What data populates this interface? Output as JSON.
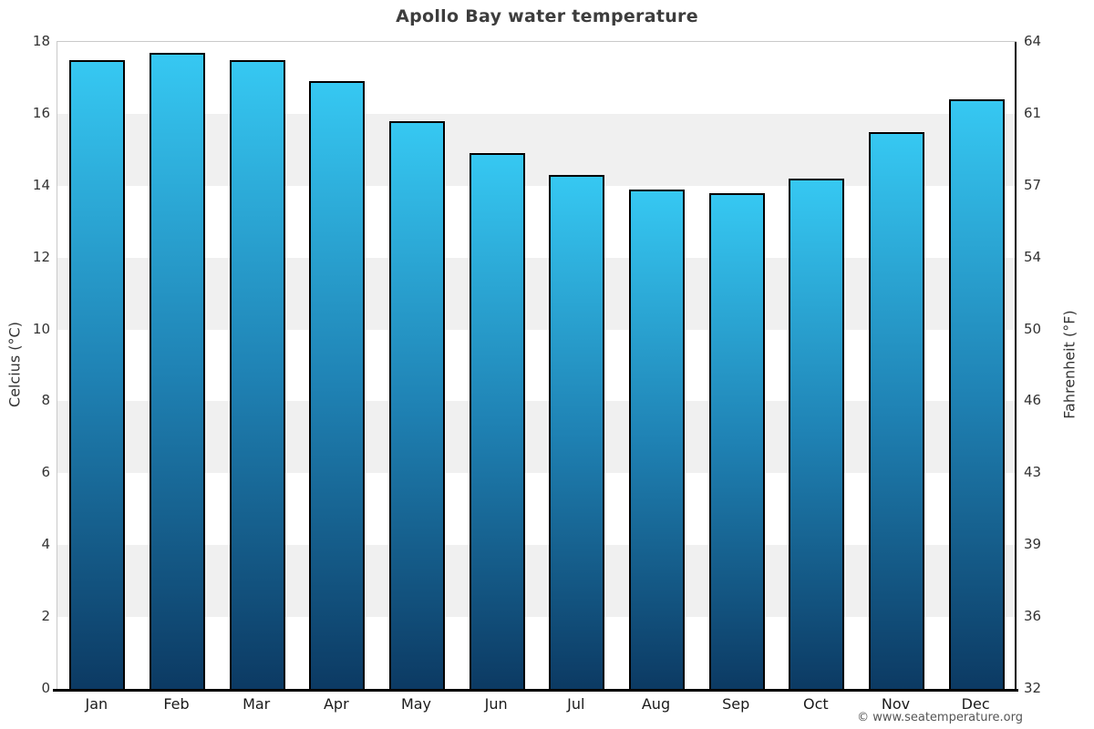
{
  "attribution": "© www.seatemperature.org",
  "chart_data": {
    "type": "bar",
    "title": "Apollo Bay water temperature",
    "categories": [
      "Jan",
      "Feb",
      "Mar",
      "Apr",
      "May",
      "Jun",
      "Jul",
      "Aug",
      "Sep",
      "Oct",
      "Nov",
      "Dec"
    ],
    "values": [
      17.5,
      17.7,
      17.5,
      16.9,
      15.8,
      14.9,
      14.3,
      13.9,
      13.8,
      14.2,
      15.5,
      16.4
    ],
    "ylabel_left": "Celcius (°C)",
    "ylabel_right": "Fahrenheit (°F)",
    "ylim": [
      0,
      18
    ],
    "yticks_celsius": [
      "18",
      "16",
      "14",
      "12",
      "10",
      "8",
      "6",
      "4",
      "2",
      "0"
    ],
    "yticks_fahrenheit": [
      "64",
      "61",
      "57",
      "54",
      "50",
      "46",
      "43",
      "39",
      "36",
      "32"
    ],
    "legend": "none",
    "grid": "alternating horizontal bands every 2°C",
    "colors": {
      "bar_gradient_top": "#36c8f2",
      "bar_gradient_mid": "#1f82b4",
      "bar_gradient_bottom": "#0c3a63",
      "bar_border": "#000000",
      "band_gray": "#f0f0f0",
      "band_white": "#ffffff",
      "title_text": "#3d3d3d",
      "axis_text": "#333333",
      "month_text": "#1a1a1a",
      "attribution_text": "#555555"
    }
  }
}
